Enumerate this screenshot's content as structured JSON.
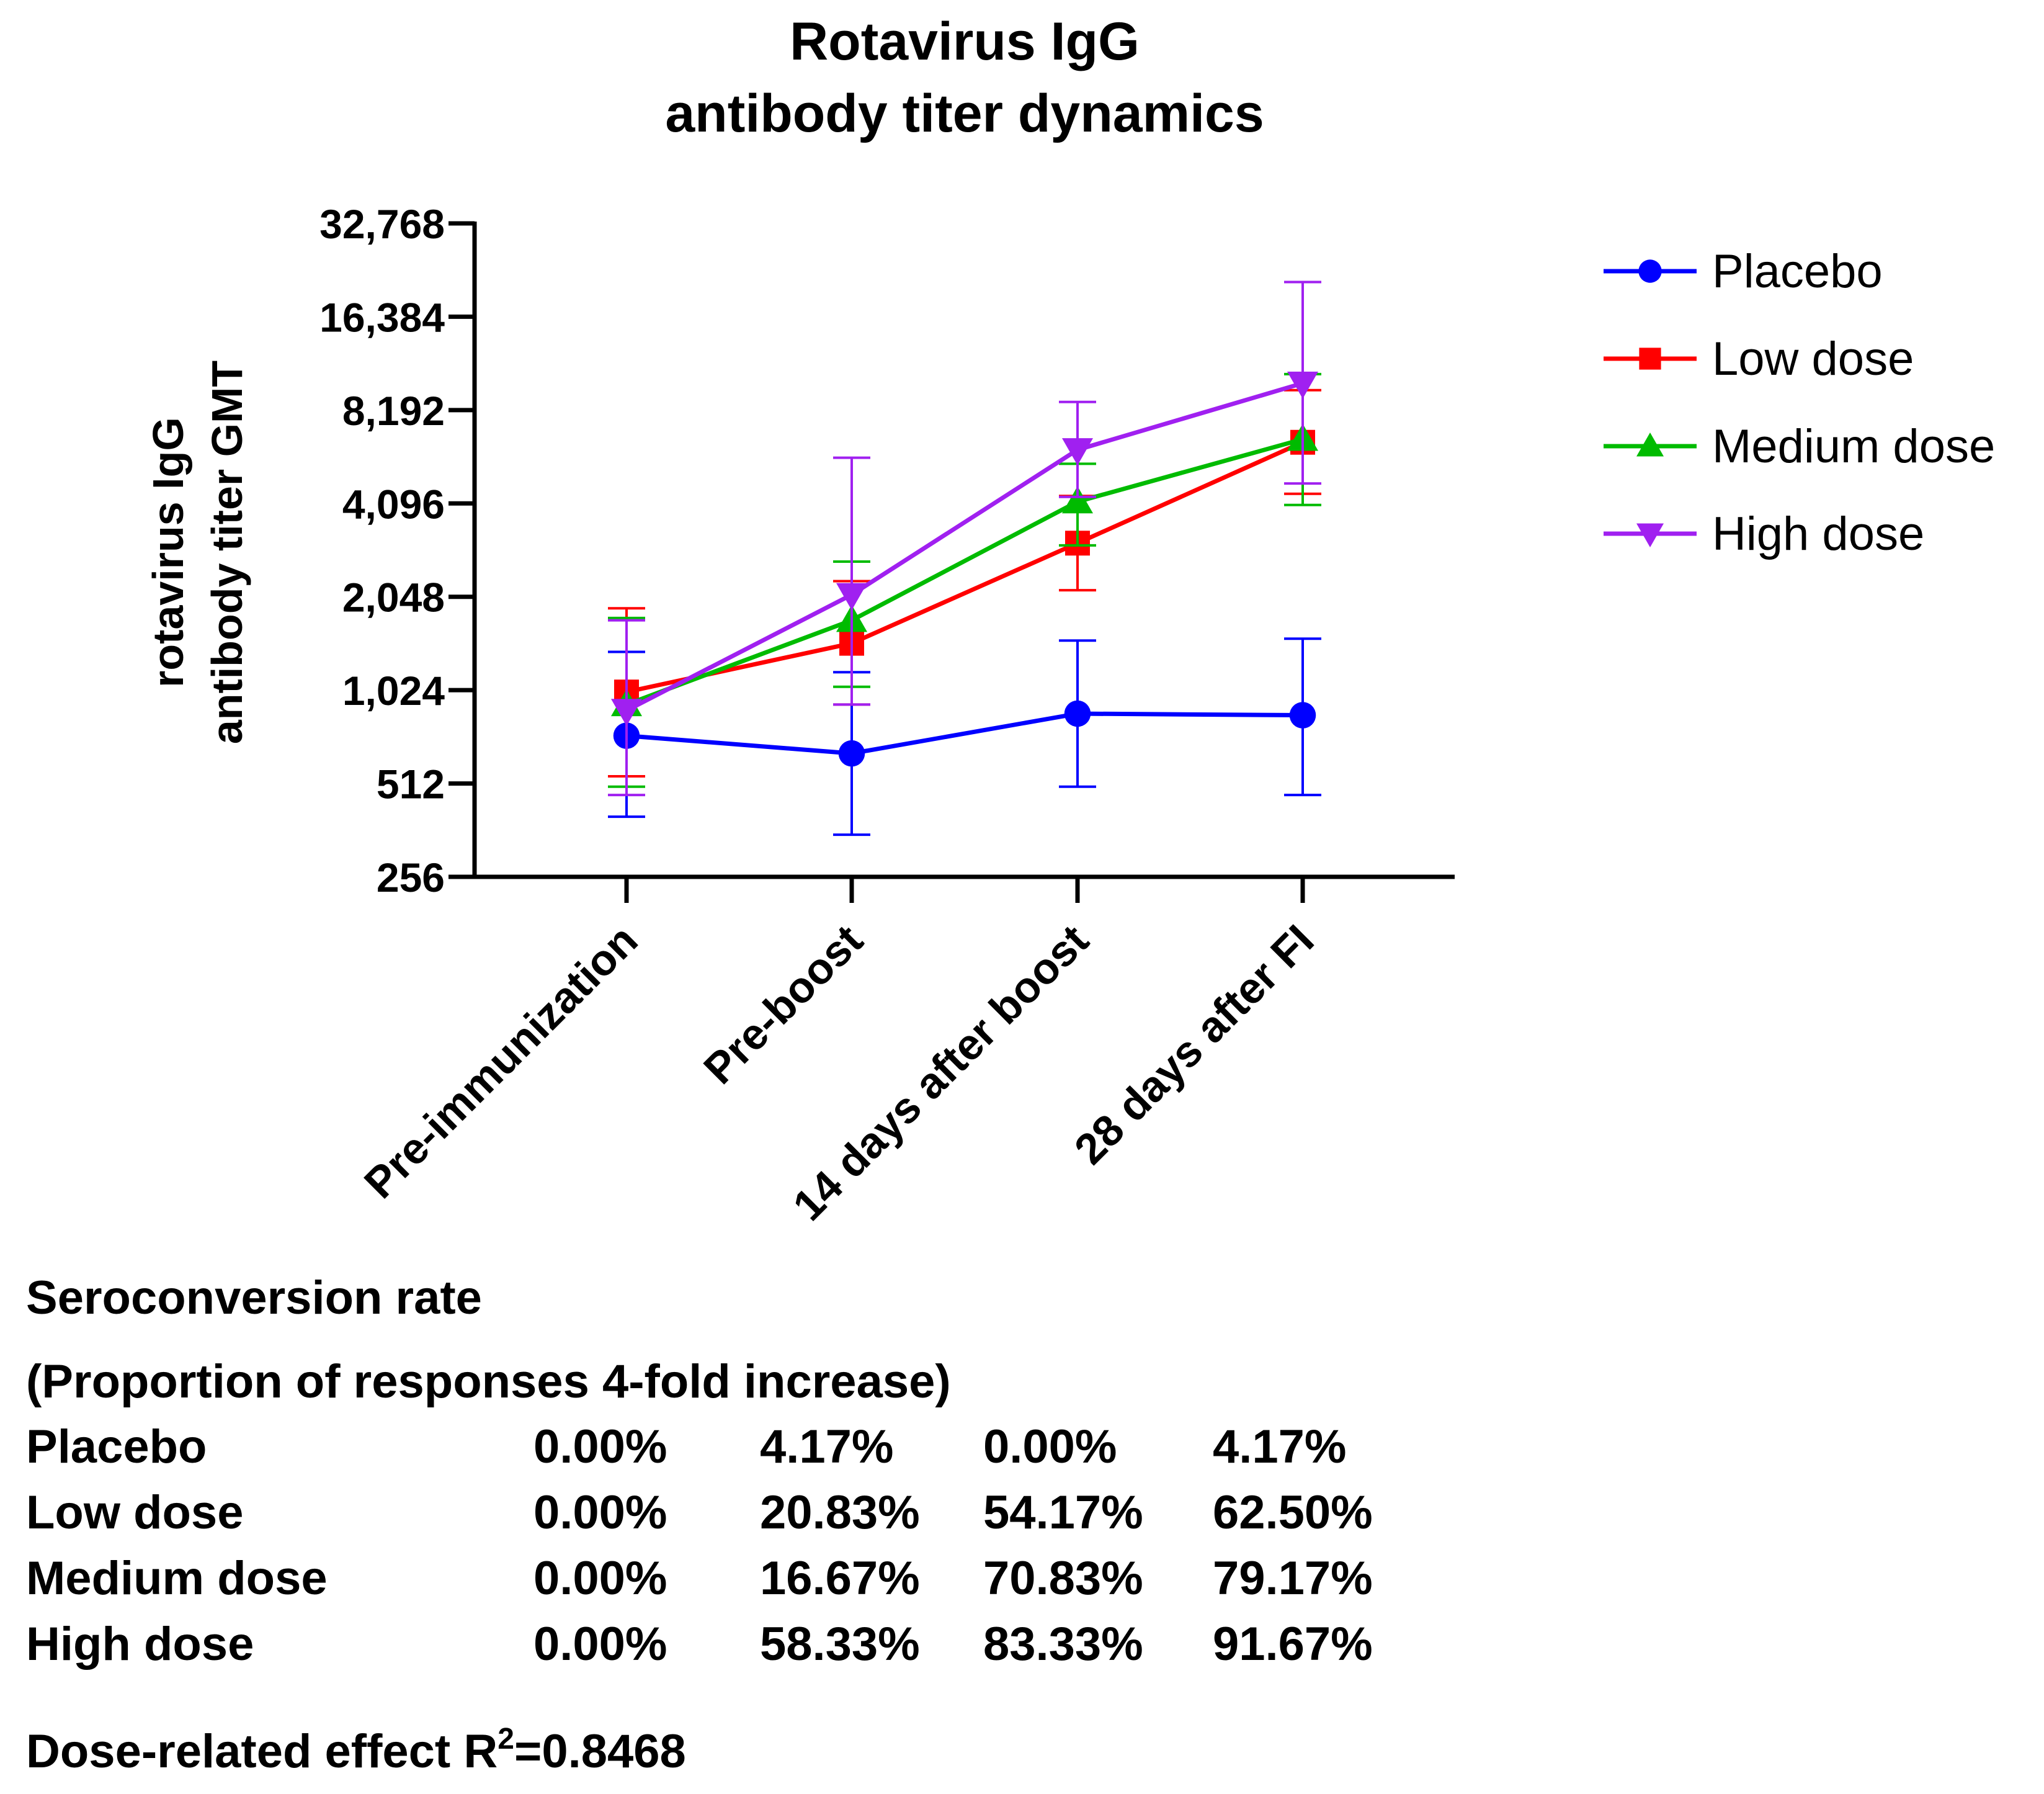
{
  "chart_data": {
    "type": "line",
    "title": [
      "Rotavirus IgG",
      "antibody titer dynamics"
    ],
    "ylabel": [
      "rotavirus IgG",
      "antibody titer GMT"
    ],
    "xlabel": "",
    "yscale": "log2",
    "ylim": [
      256,
      32768
    ],
    "yticks": [
      256,
      512,
      1024,
      2048,
      4096,
      8192,
      16384,
      32768
    ],
    "ytick_labels": [
      "256",
      "512",
      "1,024",
      "2,048",
      "4,096",
      "8,192",
      "16,384",
      "32,768"
    ],
    "categories": [
      "Pre-immunization",
      "Pre-boost",
      "14 days after boost",
      "28 days after FI"
    ],
    "series": [
      {
        "name": "Placebo",
        "color": "#0000ff",
        "marker": "circle",
        "values": [
          730,
          640,
          860,
          850
        ],
        "err_low": [
          400,
          350,
          500,
          470
        ],
        "err_high": [
          1360,
          1170,
          1480,
          1500
        ]
      },
      {
        "name": "Low dose",
        "color": "#ff0000",
        "marker": "square",
        "values": [
          1010,
          1450,
          3050,
          6450
        ],
        "err_low": [
          540,
          920,
          2150,
          4400
        ],
        "err_high": [
          1880,
          2300,
          4330,
          9500
        ]
      },
      {
        "name": "Medium dose",
        "color": "#00bb00",
        "marker": "triangle-up",
        "values": [
          920,
          1720,
          4150,
          6600
        ],
        "err_low": [
          500,
          1050,
          3000,
          4050
        ],
        "err_high": [
          1750,
          2660,
          5500,
          10700
        ]
      },
      {
        "name": "High dose",
        "color": "#a020f0",
        "marker": "triangle-down",
        "values": [
          880,
          2080,
          6100,
          10000
        ],
        "err_low": [
          470,
          920,
          4300,
          4750
        ],
        "err_high": [
          1720,
          5750,
          8700,
          21200
        ]
      }
    ]
  },
  "seroconversion": {
    "heading": [
      "Seroconversion rate",
      "(Proportion of responses 4-fold increase)"
    ],
    "rows": [
      {
        "label": "Placebo",
        "values": [
          "0.00%",
          "4.17%",
          "0.00%",
          "4.17%"
        ]
      },
      {
        "label": "Low dose",
        "values": [
          "0.00%",
          "20.83%",
          "54.17%",
          "62.50%"
        ]
      },
      {
        "label": "Medium dose",
        "values": [
          "0.00%",
          "16.67%",
          "70.83%",
          "79.17%"
        ]
      },
      {
        "label": "High dose",
        "values": [
          "0.00%",
          "58.33%",
          "83.33%",
          "91.67%"
        ]
      }
    ]
  },
  "footer": {
    "text_before": "Dose-related effect R",
    "superscript": "2",
    "text_after": "=0.8468"
  }
}
